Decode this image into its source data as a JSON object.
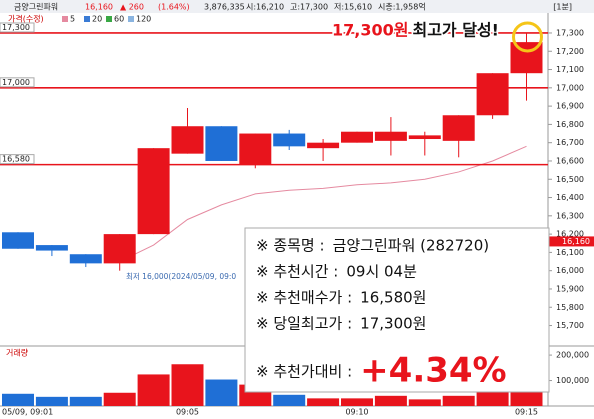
{
  "header": {
    "name": "금양그린파워",
    "price": "16,160",
    "change": "▲ 260",
    "rate": "(1.64%)",
    "volume": "3,876,335",
    "open": "시:16,210",
    "high": "고:17,300",
    "low": "저:15,610",
    "cap": "시총:1,958억",
    "period": "[1분]"
  },
  "chart_data": {
    "type": "candlestick",
    "legend_label": "가격(수정)",
    "categories": [
      null,
      "05/09, 09:01",
      null,
      null,
      null,
      "09:05",
      null,
      null,
      null,
      null,
      "09:10",
      null,
      null,
      null,
      null,
      "09:15"
    ],
    "open": [
      16210,
      16140,
      16090,
      16040,
      16200,
      16640,
      16790,
      16580,
      16750,
      16670,
      16700,
      16710,
      16720,
      16710,
      16850,
      17080
    ],
    "high": [
      16210,
      16140,
      16090,
      16200,
      16670,
      16890,
      16790,
      16750,
      16770,
      16720,
      16760,
      16840,
      16760,
      16850,
      17080,
      17300
    ],
    "low": [
      16120,
      16080,
      16020,
      16000,
      16200,
      16640,
      16600,
      16560,
      16660,
      16600,
      16700,
      16630,
      16630,
      16620,
      16830,
      16930
    ],
    "close": [
      16120,
      16110,
      16040,
      16200,
      16670,
      16790,
      16600,
      16750,
      16680,
      16700,
      16760,
      16760,
      16740,
      16850,
      17080,
      17250
    ],
    "up_color": "#e8141c",
    "down_color": "#1f6fd6",
    "ylim": [
      15610,
      17360
    ],
    "yticks": [
      {
        "value": 15700,
        "label": "15,700"
      },
      {
        "value": 15800,
        "label": "15,800"
      },
      {
        "value": 15900,
        "label": "15,900"
      },
      {
        "value": 16000,
        "label": "16,000"
      },
      {
        "value": 16100,
        "label": "16,100"
      },
      {
        "value": 16200,
        "label": "16,200"
      },
      {
        "value": 16300,
        "label": "16,300"
      },
      {
        "value": 16400,
        "label": "16,400"
      },
      {
        "value": 16500,
        "label": "16,500"
      },
      {
        "value": 16600,
        "label": "16,600"
      },
      {
        "value": 16700,
        "label": "16,700"
      },
      {
        "value": 16800,
        "label": "16,800"
      },
      {
        "value": 16900,
        "label": "16,900"
      },
      {
        "value": 17000,
        "label": "17,000"
      },
      {
        "value": 17100,
        "label": "17,100"
      },
      {
        "value": 17200,
        "label": "17,200"
      },
      {
        "value": 17300,
        "label": "17,300"
      }
    ],
    "series": [
      {
        "name": "5",
        "color": "#e58aa0",
        "values": [
          null,
          null,
          null,
          16050,
          16140,
          16280,
          16360,
          16420,
          16440,
          16450,
          16470,
          16480,
          16500,
          16540,
          16600,
          16680
        ]
      }
    ],
    "other_ma": [
      {
        "name": "20",
        "color": "#3a7bd5"
      },
      {
        "name": "60",
        "color": "#39a845"
      },
      {
        "name": "120",
        "color": "#8ab4e0"
      }
    ],
    "hlines": [
      {
        "value": 17300,
        "label": "17,300"
      },
      {
        "value": 17000,
        "label": "17,000"
      },
      {
        "value": 16580,
        "label": "16,580"
      }
    ],
    "hline_color": "#e8141c",
    "current": {
      "value": 16160,
      "label": "16,160"
    },
    "low_note": "최저 16,000(2024/05/09, 09:0",
    "volume": {
      "label": "거래량",
      "values": [
        48000,
        36000,
        36000,
        52000,
        124000,
        164000,
        104000,
        84000,
        44000,
        30000,
        30000,
        40000,
        26000,
        40000,
        60000,
        80000
      ],
      "ylim": [
        0,
        220000
      ],
      "yticks": [
        {
          "value": 100000,
          "label": "100,000"
        },
        {
          "value": 200000,
          "label": "200,000"
        }
      ]
    },
    "callout": {
      "price": "17,300원",
      "text": "최고가 달성!"
    }
  },
  "note": {
    "lines": [
      {
        "key": "※ 종목명 :",
        "value": "금양그린파워 (282720)"
      },
      {
        "key": "※ 추천시간 :",
        "value": "09시 04분"
      },
      {
        "key": "※ 추천매수가 :",
        "value": "16,580원"
      },
      {
        "key": "※ 당일최고가 :",
        "value": "17,300원"
      },
      {
        "key": "※ 추천가대비 :",
        "value": "+4.34%"
      }
    ]
  }
}
